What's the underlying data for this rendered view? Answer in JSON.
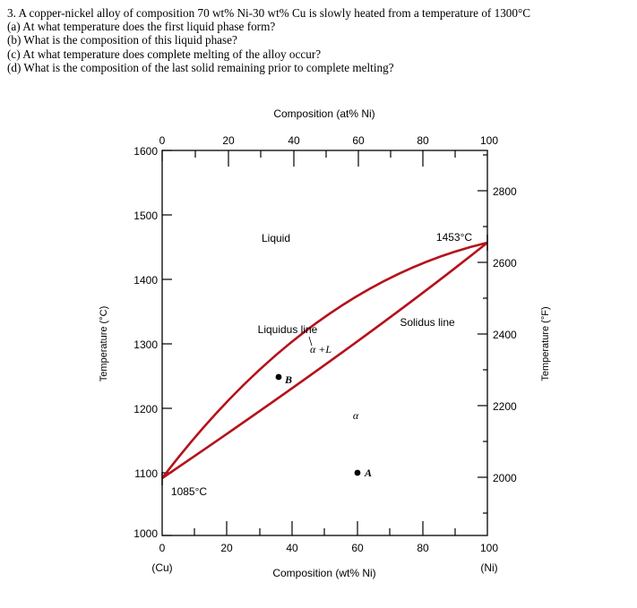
{
  "question": {
    "line1": "3. A copper-nickel alloy of composition 70 wt% Ni-30 wt% Cu is slowly heated from a temperature of 1300°C",
    "line2": "(a) At what temperature does the first liquid phase form?",
    "line3": "(b) What is the composition of this liquid phase?",
    "line4": "(c) At what temperature does complete melting of the alloy occur?",
    "line5": "(d) What is the composition of the last solid remaining prior to complete melting?"
  },
  "diagram": {
    "top_axis_title": "Composition (at% Ni)",
    "bottom_axis_title": "Composition (wt% Ni)",
    "left_axis_title": "Temperature (°C)",
    "right_axis_title": "Temperature (°F)",
    "top_ticks": [
      "0",
      "20",
      "40",
      "60",
      "80",
      "100"
    ],
    "bottom_ticks": [
      "0",
      "20",
      "40",
      "60",
      "80",
      "100"
    ],
    "left_ticks": [
      "1600",
      "1500",
      "1400",
      "1300",
      "1200",
      "1100",
      "1000"
    ],
    "right_ticks": [
      "2800",
      "2600",
      "2400",
      "2200",
      "2000"
    ],
    "cu_label": "(Cu)",
    "ni_label": "(Ni)",
    "liquid_label": "Liquid",
    "liquidus_label": "Liquidus line",
    "solidus_label": "Solidus line",
    "two_phase_label": "α +L",
    "alpha_label": "α",
    "point_a_label": "A",
    "point_b_label": "B",
    "melt_ni_label": "1453°C",
    "melt_cu_label": "1085°C",
    "curve_color": "#b5121b"
  }
}
